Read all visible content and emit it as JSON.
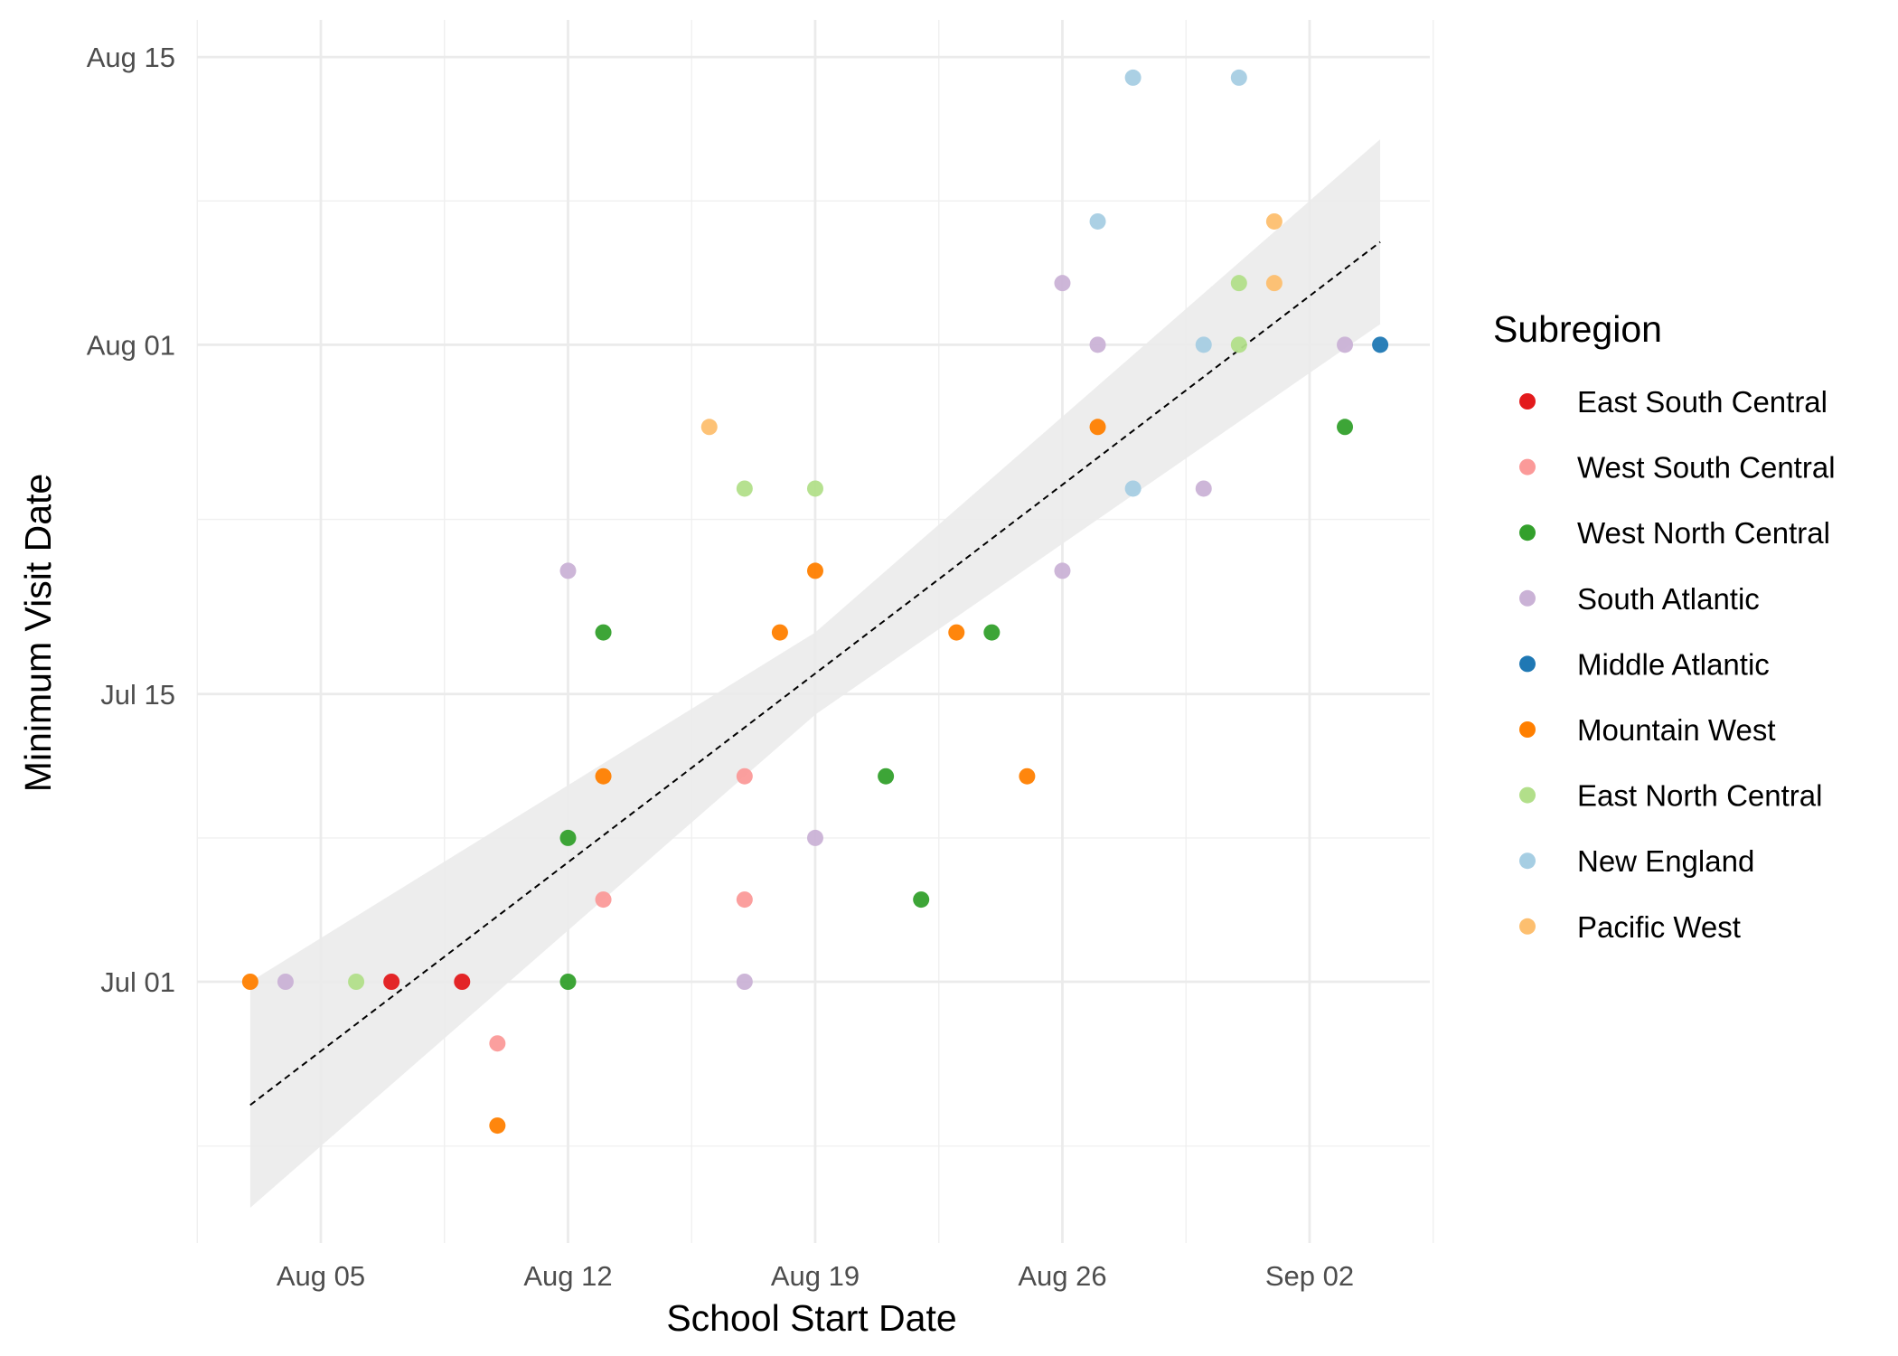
{
  "chart_data": {
    "type": "scatter",
    "title": "",
    "xlabel": "School Start Date",
    "ylabel": "Minimum Visit Date",
    "grid": true,
    "legend_position": "right",
    "legend_title": "Subregion",
    "xlim": [
      "2024-08-01",
      "2024-09-05"
    ],
    "ylim": [
      "2024-06-20",
      "2024-08-16"
    ],
    "x_ticks": [
      {
        "value": "2024-08-05",
        "label": "Aug 05"
      },
      {
        "value": "2024-08-12",
        "label": "Aug 12"
      },
      {
        "value": "2024-08-19",
        "label": "Aug 19"
      },
      {
        "value": "2024-08-26",
        "label": "Aug 26"
      },
      {
        "value": "2024-09-02",
        "label": "Sep 02"
      }
    ],
    "y_ticks": [
      {
        "value": "2024-07-01",
        "label": "Jul 01"
      },
      {
        "value": "2024-07-15",
        "label": "Jul 15"
      },
      {
        "value": "2024-08-01",
        "label": "Aug 01"
      },
      {
        "value": "2024-08-15",
        "label": "Aug 15"
      }
    ],
    "trend_line": {
      "style": "dashed",
      "color": "#000000",
      "start": {
        "x": "2024-08-03",
        "y": "2024-06-25"
      },
      "end": {
        "x": "2024-09-04",
        "y": "2024-08-06"
      }
    },
    "confidence_band": {
      "color": "#ebebeb",
      "points": [
        {
          "x": "2024-08-03",
          "lower": "2024-06-20",
          "upper": "2024-07-01"
        },
        {
          "x": "2024-08-19",
          "lower": "2024-07-14",
          "upper": "2024-07-18"
        },
        {
          "x": "2024-09-04",
          "lower": "2024-08-02",
          "upper": "2024-08-11"
        }
      ]
    },
    "series": [
      {
        "name": "East South Central",
        "color": "#e31a1c",
        "points": [
          {
            "x": "2024-08-07",
            "y": "2024-07-01"
          },
          {
            "x": "2024-08-09",
            "y": "2024-07-01"
          }
        ]
      },
      {
        "name": "West South Central",
        "color": "#fb9a99",
        "points": [
          {
            "x": "2024-08-10",
            "y": "2024-06-28"
          },
          {
            "x": "2024-08-13",
            "y": "2024-07-05"
          },
          {
            "x": "2024-08-17",
            "y": "2024-07-05"
          },
          {
            "x": "2024-08-17",
            "y": "2024-07-11"
          }
        ]
      },
      {
        "name": "West North Central",
        "color": "#33a02c",
        "points": [
          {
            "x": "2024-08-12",
            "y": "2024-07-01"
          },
          {
            "x": "2024-08-12",
            "y": "2024-07-08"
          },
          {
            "x": "2024-08-13",
            "y": "2024-07-18"
          },
          {
            "x": "2024-08-21",
            "y": "2024-07-11"
          },
          {
            "x": "2024-08-22",
            "y": "2024-07-05"
          },
          {
            "x": "2024-08-24",
            "y": "2024-07-18"
          },
          {
            "x": "2024-09-03",
            "y": "2024-07-28"
          }
        ]
      },
      {
        "name": "South Atlantic",
        "color": "#cab2d6",
        "points": [
          {
            "x": "2024-08-04",
            "y": "2024-07-01"
          },
          {
            "x": "2024-08-12",
            "y": "2024-07-21"
          },
          {
            "x": "2024-08-17",
            "y": "2024-07-01"
          },
          {
            "x": "2024-08-19",
            "y": "2024-07-08"
          },
          {
            "x": "2024-08-26",
            "y": "2024-07-21"
          },
          {
            "x": "2024-08-26",
            "y": "2024-08-04"
          },
          {
            "x": "2024-08-27",
            "y": "2024-08-01"
          },
          {
            "x": "2024-08-30",
            "y": "2024-07-25"
          },
          {
            "x": "2024-09-03",
            "y": "2024-08-01"
          }
        ]
      },
      {
        "name": "Middle Atlantic",
        "color": "#1f78b4",
        "points": [
          {
            "x": "2024-09-04",
            "y": "2024-08-01"
          }
        ]
      },
      {
        "name": "Mountain West",
        "color": "#ff7f00",
        "points": [
          {
            "x": "2024-08-03",
            "y": "2024-07-01"
          },
          {
            "x": "2024-08-10",
            "y": "2024-06-24"
          },
          {
            "x": "2024-08-13",
            "y": "2024-07-11"
          },
          {
            "x": "2024-08-18",
            "y": "2024-07-18"
          },
          {
            "x": "2024-08-19",
            "y": "2024-07-21"
          },
          {
            "x": "2024-08-23",
            "y": "2024-07-18"
          },
          {
            "x": "2024-08-25",
            "y": "2024-07-11"
          },
          {
            "x": "2024-08-27",
            "y": "2024-07-28"
          }
        ]
      },
      {
        "name": "East North Central",
        "color": "#b2df8a",
        "points": [
          {
            "x": "2024-08-06",
            "y": "2024-07-01"
          },
          {
            "x": "2024-08-17",
            "y": "2024-07-25"
          },
          {
            "x": "2024-08-19",
            "y": "2024-07-25"
          },
          {
            "x": "2024-08-31",
            "y": "2024-08-04"
          },
          {
            "x": "2024-08-31",
            "y": "2024-08-01"
          }
        ]
      },
      {
        "name": "New England",
        "color": "#a6cee3",
        "points": [
          {
            "x": "2024-08-27",
            "y": "2024-08-07"
          },
          {
            "x": "2024-08-28",
            "y": "2024-08-14"
          },
          {
            "x": "2024-08-28",
            "y": "2024-07-25"
          },
          {
            "x": "2024-08-30",
            "y": "2024-08-01"
          },
          {
            "x": "2024-08-31",
            "y": "2024-08-14"
          }
        ]
      },
      {
        "name": "Pacific West",
        "color": "#fdbf6f",
        "points": [
          {
            "x": "2024-08-16",
            "y": "2024-07-28"
          },
          {
            "x": "2024-09-01",
            "y": "2024-08-07"
          },
          {
            "x": "2024-09-01",
            "y": "2024-08-04"
          }
        ]
      }
    ]
  }
}
